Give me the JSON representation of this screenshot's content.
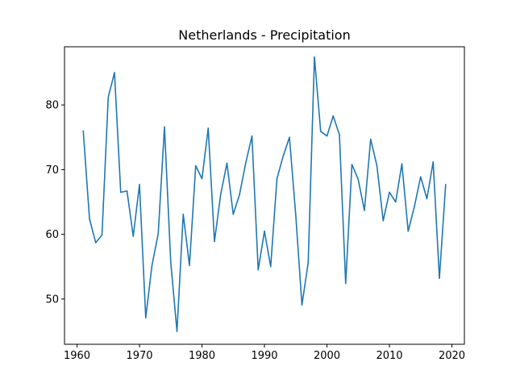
{
  "chart_data": {
    "type": "line",
    "title": "Netherlands - Precipitation",
    "xlabel": "",
    "ylabel": "",
    "xlim": [
      1958,
      2022
    ],
    "ylim": [
      43,
      89
    ],
    "x_ticks": [
      1960,
      1970,
      1980,
      1990,
      2000,
      2010,
      2020
    ],
    "y_ticks": [
      50,
      60,
      70,
      80
    ],
    "grid": false,
    "series": [
      {
        "color": "#1f77b4",
        "x": [
          1961,
          1962,
          1963,
          1964,
          1965,
          1966,
          1967,
          1968,
          1969,
          1970,
          1971,
          1972,
          1973,
          1974,
          1975,
          1976,
          1977,
          1978,
          1979,
          1980,
          1981,
          1982,
          1983,
          1984,
          1985,
          1986,
          1987,
          1988,
          1989,
          1990,
          1991,
          1992,
          1993,
          1994,
          1995,
          1996,
          1997,
          1998,
          1999,
          2000,
          2001,
          2002,
          2003,
          2004,
          2005,
          2006,
          2007,
          2008,
          2009,
          2010,
          2011,
          2012,
          2013,
          2014,
          2015,
          2016,
          2017,
          2018,
          2019
        ],
        "y": [
          76.0,
          62.4,
          58.7,
          59.9,
          81.2,
          85.0,
          66.5,
          66.7,
          59.7,
          67.7,
          47.1,
          55.2,
          60.1,
          76.6,
          55.7,
          45.0,
          63.1,
          55.2,
          70.6,
          68.6,
          76.4,
          58.9,
          66.2,
          71.0,
          63.1,
          66.1,
          71.0,
          75.2,
          54.5,
          60.5,
          55.0,
          68.6,
          72.1,
          75.0,
          63.1,
          49.1,
          55.6,
          87.4,
          75.9,
          75.2,
          78.3,
          75.4,
          52.4,
          70.8,
          68.5,
          63.7,
          74.7,
          70.6,
          62.1,
          66.5,
          65.0,
          70.9,
          60.5,
          64.3,
          68.9,
          65.5,
          71.2,
          53.2,
          67.7
        ]
      }
    ]
  }
}
